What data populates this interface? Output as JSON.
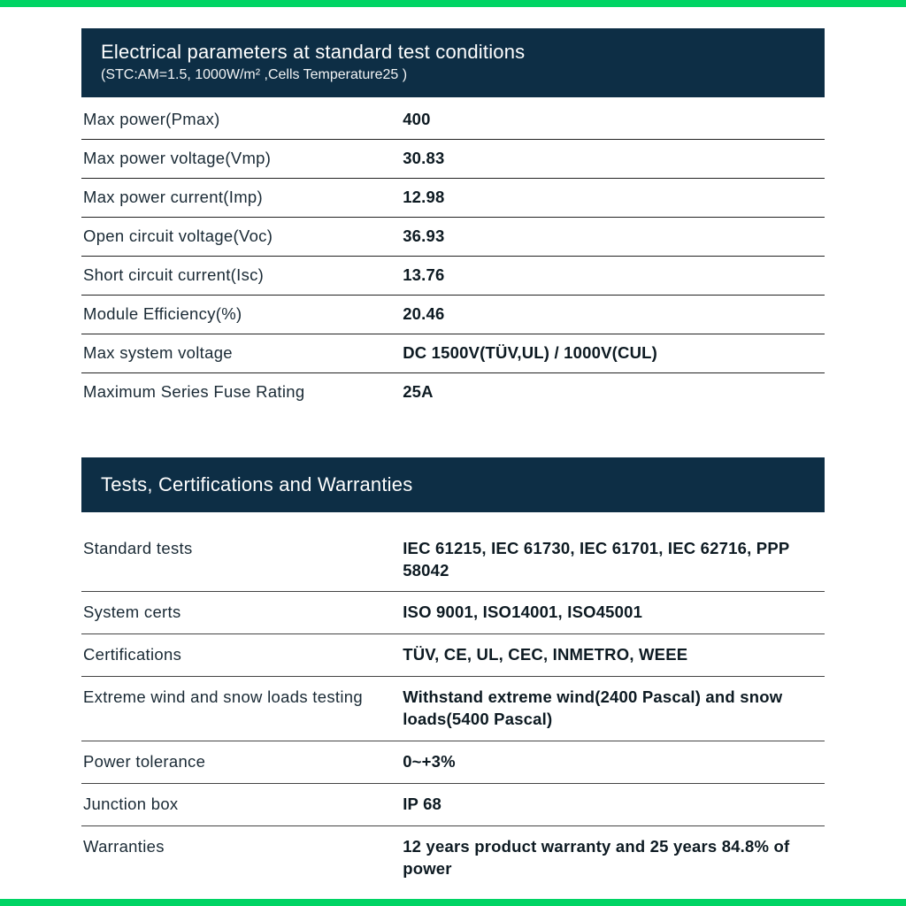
{
  "colors": {
    "accent_green": "#00d464",
    "header_navy": "#0d2e45",
    "text_dark": "#1a2a35",
    "value_dark": "#0d1a22",
    "border": "#222222",
    "background": "#ffffff"
  },
  "section1": {
    "title": "Electrical parameters at standard test conditions",
    "subtitle": "(STC:AM=1.5, 1000W/m² ,Cells Temperature25 )",
    "rows": [
      {
        "label": "Max power(Pmax)",
        "value": "400"
      },
      {
        "label": "Max power voltage(Vmp)",
        "value": "30.83"
      },
      {
        "label": "Max power current(Imp)",
        "value": "12.98"
      },
      {
        "label": "Open circuit voltage(Voc)",
        "value": "36.93"
      },
      {
        "label": "Short circuit current(Isc)",
        "value": "13.76"
      },
      {
        "label": "Module Efficiency(%)",
        "value": "20.46"
      },
      {
        "label": "Max system voltage",
        "value": "DC 1500V(TÜV,UL) / 1000V(CUL)"
      },
      {
        "label": "Maximum Series Fuse Rating",
        "value": "25A"
      }
    ]
  },
  "section2": {
    "title": "Tests, Certifications and Warranties",
    "rows": [
      {
        "label": "Standard tests",
        "value": "IEC 61215, IEC 61730, IEC 61701, IEC 62716, PPP 58042"
      },
      {
        "label": "System certs",
        "value": "ISO 9001, ISO14001, ISO45001"
      },
      {
        "label": "Certifications",
        "value": "TÜV, CE, UL, CEC, INMETRO, WEEE"
      },
      {
        "label": "Extreme wind and snow loads testing",
        "value": "Withstand extreme wind(2400 Pascal) and snow loads(5400 Pascal)"
      },
      {
        "label": "Power tolerance",
        "value": "0~+3%"
      },
      {
        "label": "Junction box",
        "value": "IP 68"
      },
      {
        "label": "Warranties",
        "value": "12 years product warranty and 25 years 84.8% of power"
      }
    ]
  }
}
